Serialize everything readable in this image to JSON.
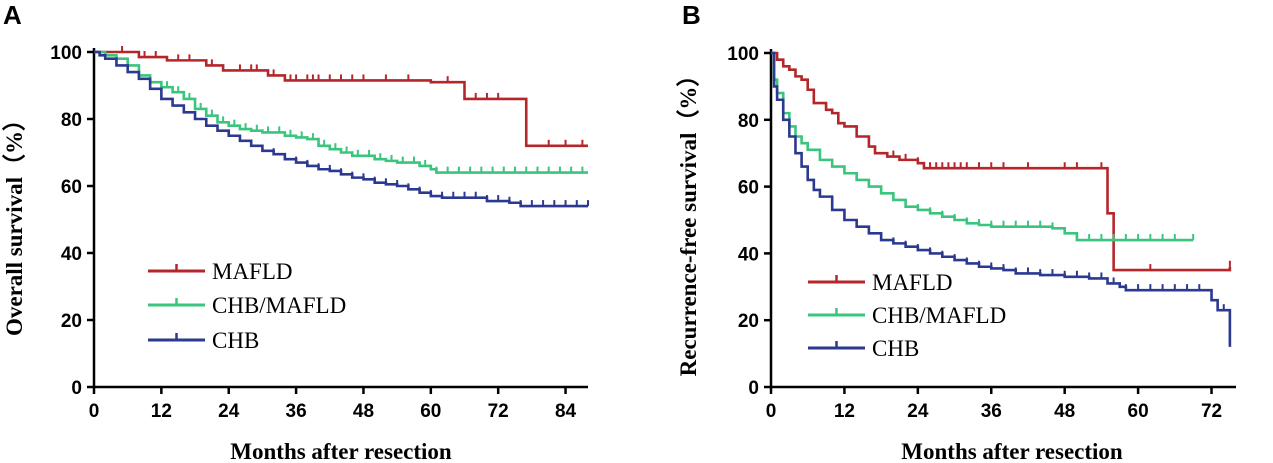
{
  "colors": {
    "mafld": "#B5262B",
    "chb_mafld": "#3BC47E",
    "chb": "#2B3990",
    "axis": "#000000"
  },
  "chart_data": [
    {
      "panel_label": "A",
      "type": "line",
      "subtype": "kaplan-meier step",
      "xlabel": "Months after resection",
      "ylabel": "Overall survival（%）",
      "xlim": [
        0,
        88
      ],
      "ylim": [
        0,
        100
      ],
      "xticks": [
        0,
        12,
        24,
        36,
        48,
        60,
        72,
        84
      ],
      "yticks": [
        0,
        20,
        40,
        60,
        80,
        100
      ],
      "legend": "lower-left",
      "series": [
        {
          "name": "MAFLD",
          "color_key": "mafld",
          "points": [
            [
              0,
              100
            ],
            [
              8,
              100
            ],
            [
              8,
              98.5
            ],
            [
              13,
              98.5
            ],
            [
              13,
              97.5
            ],
            [
              20,
              97.5
            ],
            [
              20,
              96
            ],
            [
              23,
              96
            ],
            [
              23,
              94.5
            ],
            [
              31,
              94.5
            ],
            [
              31,
              93
            ],
            [
              34,
              93
            ],
            [
              34,
              91.5
            ],
            [
              60,
              91.5
            ],
            [
              60,
              91
            ],
            [
              66,
              91
            ],
            [
              66,
              86
            ],
            [
              77,
              86
            ],
            [
              77,
              72
            ],
            [
              88,
              72
            ]
          ],
          "censor_x": [
            5,
            9,
            11,
            15,
            17,
            21,
            26,
            28,
            29,
            32,
            35,
            36,
            38,
            39,
            40,
            42,
            44,
            46,
            48,
            52,
            56,
            63,
            68,
            70,
            72,
            81,
            84,
            87
          ]
        },
        {
          "name": "CHB/MAFLD",
          "color_key": "chb_mafld",
          "points": [
            [
              0,
              100
            ],
            [
              2,
              99
            ],
            [
              4,
              98
            ],
            [
              6,
              96
            ],
            [
              8,
              93
            ],
            [
              10,
              91
            ],
            [
              12,
              89.5
            ],
            [
              14,
              88
            ],
            [
              16,
              86
            ],
            [
              18,
              83
            ],
            [
              20,
              81
            ],
            [
              22,
              79
            ],
            [
              24,
              78
            ],
            [
              26,
              77
            ],
            [
              28,
              76.5
            ],
            [
              30,
              76
            ],
            [
              32,
              76
            ],
            [
              34,
              75
            ],
            [
              36,
              74.5
            ],
            [
              38,
              74
            ],
            [
              40,
              72
            ],
            [
              42,
              71
            ],
            [
              44,
              70
            ],
            [
              46,
              69
            ],
            [
              48,
              69
            ],
            [
              50,
              68
            ],
            [
              52,
              67.5
            ],
            [
              54,
              67
            ],
            [
              56,
              67
            ],
            [
              58,
              66
            ],
            [
              60,
              65
            ],
            [
              61,
              64
            ],
            [
              70,
              64
            ],
            [
              88,
              64
            ]
          ],
          "censor_x": [
            13,
            15,
            17,
            19,
            21,
            23,
            25,
            27,
            29,
            31,
            33,
            35,
            37,
            39,
            41,
            43,
            45,
            47,
            49,
            51,
            53,
            55,
            57,
            59,
            61,
            63,
            65,
            67,
            69,
            71,
            73,
            75,
            77,
            79,
            81,
            83,
            85,
            87
          ]
        },
        {
          "name": "CHB",
          "color_key": "chb",
          "points": [
            [
              0,
              100
            ],
            [
              1,
              99
            ],
            [
              2,
              98
            ],
            [
              4,
              96
            ],
            [
              6,
              94
            ],
            [
              8,
              92
            ],
            [
              10,
              89
            ],
            [
              12,
              86
            ],
            [
              14,
              84
            ],
            [
              16,
              82
            ],
            [
              18,
              80
            ],
            [
              20,
              78
            ],
            [
              22,
              76.5
            ],
            [
              24,
              75
            ],
            [
              26,
              73.5
            ],
            [
              28,
              72
            ],
            [
              30,
              70.5
            ],
            [
              32,
              69.5
            ],
            [
              34,
              68
            ],
            [
              36,
              67
            ],
            [
              38,
              66
            ],
            [
              40,
              65
            ],
            [
              42,
              64.5
            ],
            [
              44,
              63.5
            ],
            [
              46,
              62.5
            ],
            [
              48,
              62
            ],
            [
              50,
              61
            ],
            [
              52,
              60.5
            ],
            [
              54,
              60
            ],
            [
              56,
              59
            ],
            [
              58,
              58
            ],
            [
              60,
              57
            ],
            [
              62,
              56.5
            ],
            [
              66,
              56.5
            ],
            [
              70,
              55.5
            ],
            [
              74,
              55
            ],
            [
              76,
              54
            ],
            [
              80,
              54
            ],
            [
              88,
              54
            ]
          ],
          "censor_x": [
            20,
            22,
            24,
            26,
            28,
            30,
            32,
            34,
            36,
            38,
            40,
            42,
            44,
            46,
            48,
            50,
            52,
            54,
            56,
            58,
            60,
            62,
            64,
            66,
            68,
            70,
            72,
            74,
            76,
            78,
            80,
            82,
            84,
            86,
            88
          ]
        }
      ]
    },
    {
      "panel_label": "B",
      "type": "line",
      "subtype": "kaplan-meier step",
      "xlabel": "Months after resection",
      "ylabel": "Recurrence-free survival（%）",
      "xlim": [
        0,
        76
      ],
      "ylim": [
        0,
        100
      ],
      "xticks": [
        0,
        12,
        24,
        36,
        48,
        60,
        72
      ],
      "yticks": [
        0,
        20,
        40,
        60,
        80,
        100
      ],
      "legend": "lower-left",
      "series": [
        {
          "name": "MAFLD",
          "color_key": "mafld",
          "points": [
            [
              0,
              100
            ],
            [
              1,
              98
            ],
            [
              2,
              96
            ],
            [
              3,
              95
            ],
            [
              4,
              93
            ],
            [
              5,
              92
            ],
            [
              6,
              89
            ],
            [
              7,
              85
            ],
            [
              9,
              83
            ],
            [
              10,
              82
            ],
            [
              11,
              79
            ],
            [
              12,
              78
            ],
            [
              14,
              75
            ],
            [
              16,
              72
            ],
            [
              17,
              70
            ],
            [
              19,
              69
            ],
            [
              21,
              68
            ],
            [
              24,
              67
            ],
            [
              25,
              65.5
            ],
            [
              55,
              65.5
            ],
            [
              55,
              52
            ],
            [
              56,
              35
            ],
            [
              75,
              35
            ],
            [
              75,
              36
            ]
          ],
          "censor_x": [
            20,
            22,
            24,
            26,
            27,
            28,
            29,
            30,
            31,
            32,
            34,
            36,
            38,
            42,
            48,
            50,
            54,
            62,
            75
          ]
        },
        {
          "name": "CHB/MAFLD",
          "color_key": "chb_mafld",
          "points": [
            [
              0,
              100
            ],
            [
              0.5,
              92
            ],
            [
              1,
              88
            ],
            [
              2,
              82
            ],
            [
              3,
              78
            ],
            [
              4,
              75
            ],
            [
              5,
              73
            ],
            [
              6,
              71
            ],
            [
              8,
              68
            ],
            [
              10,
              66
            ],
            [
              12,
              64
            ],
            [
              14,
              62
            ],
            [
              16,
              60
            ],
            [
              18,
              58
            ],
            [
              20,
              56
            ],
            [
              22,
              54
            ],
            [
              24,
              53
            ],
            [
              26,
              52
            ],
            [
              28,
              51
            ],
            [
              30,
              50
            ],
            [
              32,
              49
            ],
            [
              34,
              48.5
            ],
            [
              36,
              48
            ],
            [
              42,
              48
            ],
            [
              46,
              47.5
            ],
            [
              48,
              46
            ],
            [
              50,
              44
            ],
            [
              60,
              44
            ],
            [
              69,
              44
            ]
          ],
          "censor_x": [
            14,
            16,
            18,
            20,
            22,
            24,
            26,
            28,
            30,
            32,
            34,
            36,
            38,
            40,
            42,
            44,
            46,
            48,
            50,
            52,
            54,
            56,
            58,
            60,
            62,
            64,
            66,
            69
          ]
        },
        {
          "name": "CHB",
          "color_key": "chb",
          "points": [
            [
              0,
              100
            ],
            [
              0.5,
              90
            ],
            [
              1,
              86
            ],
            [
              2,
              80
            ],
            [
              3,
              75
            ],
            [
              4,
              70
            ],
            [
              5,
              66
            ],
            [
              6,
              62
            ],
            [
              7,
              59
            ],
            [
              8,
              57
            ],
            [
              10,
              53
            ],
            [
              12,
              50
            ],
            [
              14,
              48
            ],
            [
              16,
              46
            ],
            [
              18,
              44
            ],
            [
              20,
              43
            ],
            [
              22,
              42
            ],
            [
              24,
              41
            ],
            [
              26,
              40
            ],
            [
              28,
              39
            ],
            [
              30,
              38
            ],
            [
              32,
              37
            ],
            [
              34,
              36
            ],
            [
              36,
              35.5
            ],
            [
              38,
              35
            ],
            [
              40,
              34
            ],
            [
              44,
              33.5
            ],
            [
              48,
              33
            ],
            [
              52,
              32.5
            ],
            [
              55,
              31
            ],
            [
              57,
              30
            ],
            [
              58,
              29
            ],
            [
              72,
              29
            ],
            [
              72,
              26
            ],
            [
              73,
              23
            ],
            [
              74,
              23
            ],
            [
              75,
              12
            ]
          ],
          "censor_x": [
            16,
            18,
            20,
            22,
            24,
            26,
            28,
            30,
            32,
            34,
            36,
            38,
            40,
            42,
            44,
            46,
            48,
            50,
            52,
            54,
            56,
            58,
            60,
            62,
            64,
            66,
            68,
            70,
            72,
            73,
            74
          ]
        }
      ]
    }
  ]
}
